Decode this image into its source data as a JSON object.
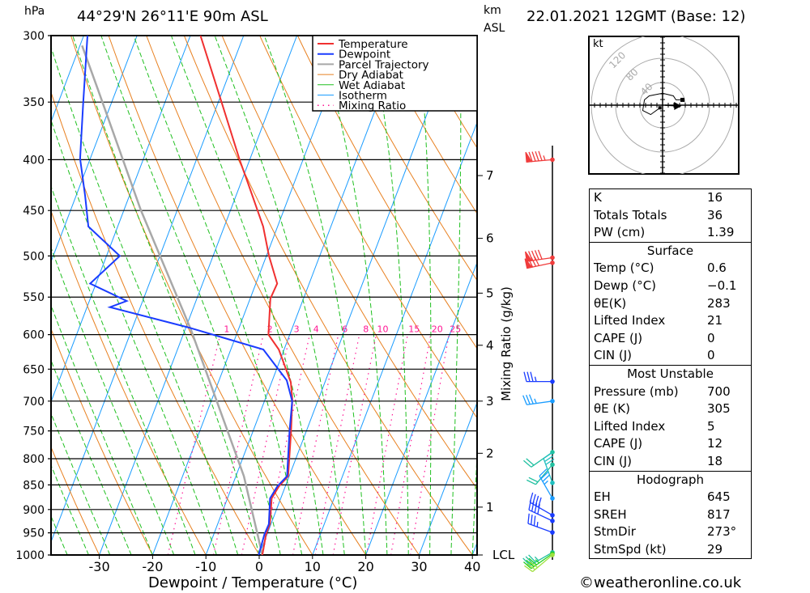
{
  "header": {
    "pressure_unit": "hPa",
    "location": "44°29'N 26°11'E 90m ASL",
    "km_label": "km",
    "asl_label": "ASL",
    "datetime": "22.01.2021 12GMT (Base: 12)",
    "copyright": "©weatheronline.co.uk"
  },
  "chart_data": {
    "type": "line",
    "title": "44°29'N 26°11'E 90m ASL",
    "xlabel": "Dewpoint / Temperature (°C)",
    "ylabel": "hPa",
    "right_label": "Mixing Ratio (g/kg)",
    "xlim": [
      -40,
      40
    ],
    "ylim": [
      1000,
      300
    ],
    "x_ticks": [
      -30,
      -20,
      -10,
      0,
      10,
      20,
      30,
      40
    ],
    "pressure_ticks": [
      300,
      350,
      400,
      450,
      500,
      550,
      600,
      650,
      700,
      750,
      800,
      850,
      900,
      950,
      1000
    ],
    "km_ticks": [
      {
        "label": "7",
        "p": 415
      },
      {
        "label": "6",
        "p": 480
      },
      {
        "label": "5",
        "p": 545
      },
      {
        "label": "4",
        "p": 615
      },
      {
        "label": "3",
        "p": 700
      },
      {
        "label": "2",
        "p": 790
      },
      {
        "label": "1",
        "p": 895
      },
      {
        "label": "LCL",
        "p": 1000
      }
    ],
    "mixing_ratio_labels": [
      "1",
      "2",
      "3",
      "4",
      "6",
      "8",
      "10",
      "15",
      "20",
      "25"
    ],
    "mixing_ratios": [
      1,
      2,
      3,
      4,
      6,
      8,
      10,
      15,
      20,
      25
    ],
    "legend": [
      {
        "name": "Temperature",
        "color": "#f03030",
        "style": "solid"
      },
      {
        "name": "Dewpoint",
        "color": "#1a3cff",
        "style": "solid"
      },
      {
        "name": "Parcel Trajectory",
        "color": "#a8a8a8",
        "style": "solid"
      },
      {
        "name": "Dry Adiabat",
        "color": "#e88020",
        "style": "thin"
      },
      {
        "name": "Wet Adiabat",
        "color": "#20c020",
        "style": "thin"
      },
      {
        "name": "Isotherm",
        "color": "#1a9cff",
        "style": "thin"
      },
      {
        "name": "Mixing Ratio",
        "color": "#ff1493",
        "style": "dotted"
      }
    ],
    "series": [
      {
        "name": "Temperature",
        "points": [
          [
            300,
            -48.1
          ],
          [
            350,
            -39.4
          ],
          [
            400,
            -31.9
          ],
          [
            422,
            -28.7
          ],
          [
            467,
            -22.7
          ],
          [
            500,
            -19.5
          ],
          [
            533,
            -16.0
          ],
          [
            552,
            -16.2
          ],
          [
            600,
            -14.0
          ],
          [
            621,
            -11.0
          ],
          [
            670,
            -6.4
          ],
          [
            697,
            -4.9
          ],
          [
            752,
            -2.8
          ],
          [
            833,
            -0.2
          ],
          [
            853,
            -1.2
          ],
          [
            877,
            -1.7
          ],
          [
            931,
            -0.2
          ],
          [
            953,
            -0.2
          ],
          [
            1000,
            0.6
          ]
        ]
      },
      {
        "name": "Dewpoint",
        "points": [
          [
            300,
            -69.3
          ],
          [
            352,
            -65.2
          ],
          [
            399,
            -61.9
          ],
          [
            435,
            -58.3
          ],
          [
            467,
            -55.5
          ],
          [
            500,
            -47.5
          ],
          [
            533,
            -51.1
          ],
          [
            555,
            -43.0
          ],
          [
            563,
            -45.7
          ],
          [
            590,
            -29.6
          ],
          [
            621,
            -13.9
          ],
          [
            667,
            -7.3
          ],
          [
            700,
            -4.8
          ],
          [
            752,
            -3.1
          ],
          [
            833,
            -0.4
          ],
          [
            853,
            -1.5
          ],
          [
            877,
            -2.0
          ],
          [
            931,
            -0.4
          ],
          [
            953,
            -0.5
          ],
          [
            1000,
            -0.1
          ]
        ]
      },
      {
        "name": "Parcel Trajectory",
        "points": [
          [
            1000,
            0.6
          ],
          [
            833,
            -8.5
          ],
          [
            593,
            -28.9
          ],
          [
            449,
            -46.9
          ],
          [
            341,
            -63.3
          ],
          [
            307,
            -69.6
          ]
        ]
      }
    ],
    "wind_barbs": [
      {
        "p": 400,
        "dir": 265,
        "speed": 95,
        "color": "#f03c3c"
      },
      {
        "p": 502,
        "dir": 262,
        "speed": 90,
        "color": "#f03c3c"
      },
      {
        "p": 508,
        "dir": 258,
        "speed": 80,
        "color": "#f03c3c"
      },
      {
        "p": 669,
        "dir": 270,
        "speed": 35,
        "color": "#1a3cff"
      },
      {
        "p": 700,
        "dir": 262,
        "speed": 35,
        "color": "#1a9cff"
      },
      {
        "p": 788,
        "dir": 235,
        "speed": 20,
        "color": "#20c0a0"
      },
      {
        "p": 811,
        "dir": 220,
        "speed": 20,
        "color": "#20c0a0"
      },
      {
        "p": 846,
        "dir": 340,
        "speed": 30,
        "color": "#20c0c0"
      },
      {
        "p": 877,
        "dir": 330,
        "speed": 35,
        "color": "#1a9cff"
      },
      {
        "p": 912,
        "dir": 300,
        "speed": 40,
        "color": "#1a3cff"
      },
      {
        "p": 924,
        "dir": 295,
        "speed": 40,
        "color": "#1a3cff"
      },
      {
        "p": 949,
        "dir": 290,
        "speed": 35,
        "color": "#1a3cff"
      },
      {
        "p": 994,
        "dir": 240,
        "speed": 35,
        "color": "#20c0a0"
      },
      {
        "p": 997,
        "dir": 235,
        "speed": 35,
        "color": "#20d020"
      },
      {
        "p": 1000,
        "dir": 230,
        "speed": 30,
        "color": "#a0e040"
      }
    ]
  },
  "hodograph": {
    "unit": "kt",
    "rings": [
      {
        "kt": 40,
        "label": "40"
      },
      {
        "kt": 80,
        "label": "80"
      },
      {
        "kt": 120,
        "label": "120"
      }
    ],
    "trace_uv": [
      [
        -4.7,
        -4.7
      ],
      [
        -21,
        -16.5
      ],
      [
        -35,
        -9.4
      ],
      [
        -32,
        9.4
      ],
      [
        -23.5,
        16.5
      ],
      [
        0,
        21
      ],
      [
        19,
        16.5
      ],
      [
        23.5,
        9.4
      ],
      [
        35,
        9.4
      ]
    ],
    "storm_motion_uv": [
      29,
      -1.5
    ]
  },
  "stats": {
    "indices": [
      {
        "label": "K",
        "value": "16"
      },
      {
        "label": "Totals Totals",
        "value": "36"
      },
      {
        "label": "PW (cm)",
        "value": "1.39"
      }
    ],
    "surface": {
      "title": "Surface",
      "rows": [
        {
          "label": "Temp (°C)",
          "value": "0.6"
        },
        {
          "label": "Dewp (°C)",
          "value": "−0.1"
        },
        {
          "label": "θE(K)",
          "value": "283"
        },
        {
          "label": "Lifted Index",
          "value": "21"
        },
        {
          "label": "CAPE (J)",
          "value": "0"
        },
        {
          "label": "CIN (J)",
          "value": "0"
        }
      ]
    },
    "most_unstable": {
      "title": "Most Unstable",
      "rows": [
        {
          "label": "Pressure (mb)",
          "value": "700"
        },
        {
          "label": "θE (K)",
          "value": "305"
        },
        {
          "label": "Lifted Index",
          "value": "5"
        },
        {
          "label": "CAPE (J)",
          "value": "12"
        },
        {
          "label": "CIN (J)",
          "value": "18"
        }
      ]
    },
    "hodograph": {
      "title": "Hodograph",
      "rows": [
        {
          "label": "EH",
          "value": "645"
        },
        {
          "label": "SREH",
          "value": "817"
        },
        {
          "label": "StmDir",
          "value": "273°"
        },
        {
          "label": "StmSpd (kt)",
          "value": "29"
        }
      ]
    }
  }
}
